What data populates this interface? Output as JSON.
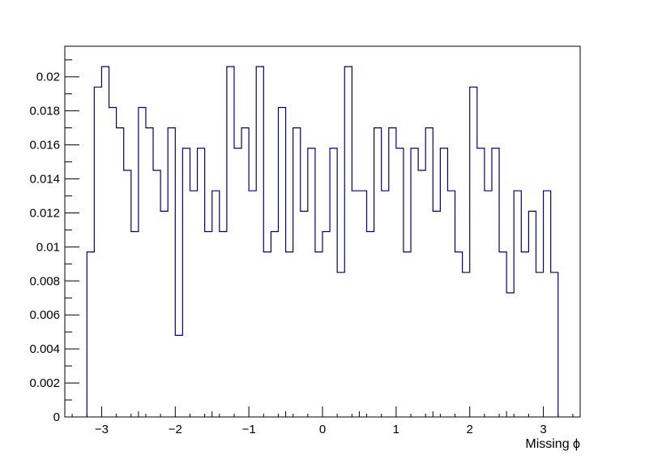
{
  "chart_data": {
    "type": "histogram",
    "title": "",
    "xlabel": "Missing ϕ",
    "ylabel": "",
    "xlim": [
      -3.5,
      3.5
    ],
    "ylim": [
      0,
      0.0218
    ],
    "grid": false,
    "legend": "none",
    "line_color": "#000080",
    "bin_edges_range": [
      -3.2,
      3.2
    ],
    "bin_width": 0.1,
    "values": [
      0.0097,
      0.0194,
      0.0206,
      0.0182,
      0.017,
      0.0145,
      0.0109,
      0.0182,
      0.017,
      0.0145,
      0.0121,
      0.017,
      0.0048,
      0.0158,
      0.0133,
      0.0158,
      0.0109,
      0.0133,
      0.0109,
      0.0206,
      0.0158,
      0.017,
      0.0133,
      0.0206,
      0.0097,
      0.0109,
      0.0182,
      0.0097,
      0.017,
      0.0121,
      0.0158,
      0.0097,
      0.0109,
      0.0158,
      0.0085,
      0.0206,
      0.0133,
      0.0133,
      0.0109,
      0.017,
      0.0133,
      0.017,
      0.0158,
      0.0097,
      0.0158,
      0.0145,
      0.017,
      0.0121,
      0.0158,
      0.0133,
      0.0097,
      0.0085,
      0.0194,
      0.0158,
      0.0133,
      0.0158,
      0.0097,
      0.0073,
      0.0133,
      0.0097,
      0.0121,
      0.0085,
      0.0133,
      0.0085
    ],
    "x_ticks": [
      {
        "value": -3,
        "label": "−3"
      },
      {
        "value": -2,
        "label": "−2"
      },
      {
        "value": -1,
        "label": "−1"
      },
      {
        "value": 0,
        "label": "0"
      },
      {
        "value": 1,
        "label": "1"
      },
      {
        "value": 2,
        "label": "2"
      },
      {
        "value": 3,
        "label": "3"
      }
    ],
    "y_ticks": [
      {
        "value": 0,
        "label": "0"
      },
      {
        "value": 0.002,
        "label": "0.002"
      },
      {
        "value": 0.004,
        "label": "0.004"
      },
      {
        "value": 0.006,
        "label": "0.006"
      },
      {
        "value": 0.008,
        "label": "0.008"
      },
      {
        "value": 0.01,
        "label": "0.01"
      },
      {
        "value": 0.012,
        "label": "0.012"
      },
      {
        "value": 0.014,
        "label": "0.014"
      },
      {
        "value": 0.016,
        "label": "0.016"
      },
      {
        "value": 0.018,
        "label": "0.018"
      },
      {
        "value": 0.02,
        "label": "0.02"
      }
    ]
  }
}
